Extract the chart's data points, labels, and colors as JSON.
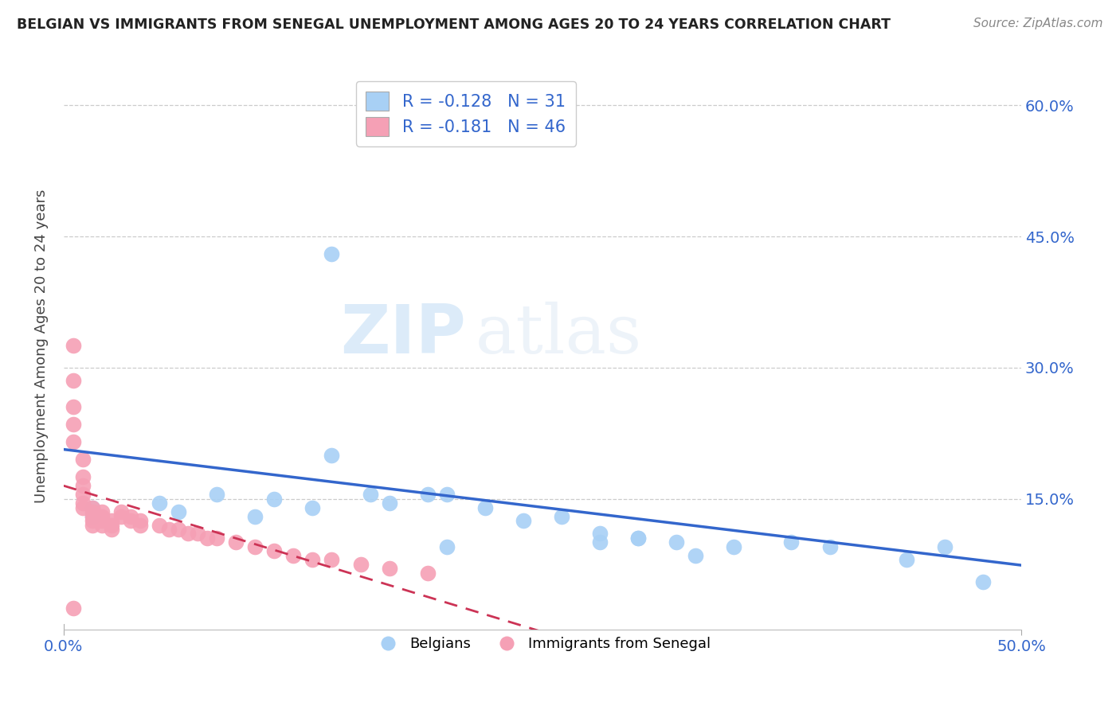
{
  "title": "BELGIAN VS IMMIGRANTS FROM SENEGAL UNEMPLOYMENT AMONG AGES 20 TO 24 YEARS CORRELATION CHART",
  "source": "Source: ZipAtlas.com",
  "ylabel": "Unemployment Among Ages 20 to 24 years",
  "xlim": [
    0.0,
    0.5
  ],
  "ylim": [
    0.0,
    0.65
  ],
  "yticks": [
    0.15,
    0.3,
    0.45,
    0.6
  ],
  "ytick_labels": [
    "15.0%",
    "30.0%",
    "45.0%",
    "60.0%"
  ],
  "xtick_labels": [
    "0.0%",
    "50.0%"
  ],
  "legend_labels": [
    "Belgians",
    "Immigrants from Senegal"
  ],
  "legend_R": [
    -0.128,
    -0.181
  ],
  "legend_N": [
    31,
    46
  ],
  "blue_color": "#a8d0f5",
  "pink_color": "#f5a0b5",
  "blue_line_color": "#3366cc",
  "pink_line_color": "#cc3355",
  "watermark_zip": "ZIP",
  "watermark_atlas": "atlas",
  "belgians_x": [
    0.015,
    0.015,
    0.18,
    0.14,
    0.05,
    0.06,
    0.08,
    0.1,
    0.11,
    0.13,
    0.14,
    0.16,
    0.17,
    0.19,
    0.2,
    0.22,
    0.24,
    0.26,
    0.28,
    0.3,
    0.32,
    0.35,
    0.38,
    0.4,
    0.28,
    0.3,
    0.33,
    0.44,
    0.46,
    0.48,
    0.2
  ],
  "belgians_y": [
    0.14,
    0.13,
    0.57,
    0.43,
    0.145,
    0.135,
    0.155,
    0.13,
    0.15,
    0.14,
    0.2,
    0.155,
    0.145,
    0.155,
    0.155,
    0.14,
    0.125,
    0.13,
    0.11,
    0.105,
    0.1,
    0.095,
    0.1,
    0.095,
    0.1,
    0.105,
    0.085,
    0.08,
    0.095,
    0.055,
    0.095
  ],
  "senegal_x": [
    0.005,
    0.005,
    0.005,
    0.005,
    0.005,
    0.01,
    0.01,
    0.01,
    0.01,
    0.01,
    0.01,
    0.015,
    0.015,
    0.015,
    0.015,
    0.015,
    0.02,
    0.02,
    0.02,
    0.02,
    0.025,
    0.025,
    0.025,
    0.03,
    0.03,
    0.035,
    0.035,
    0.04,
    0.04,
    0.05,
    0.055,
    0.06,
    0.065,
    0.07,
    0.075,
    0.08,
    0.09,
    0.1,
    0.11,
    0.12,
    0.13,
    0.14,
    0.155,
    0.17,
    0.19,
    0.005
  ],
  "senegal_y": [
    0.325,
    0.285,
    0.255,
    0.235,
    0.215,
    0.195,
    0.175,
    0.165,
    0.155,
    0.145,
    0.14,
    0.14,
    0.135,
    0.13,
    0.125,
    0.12,
    0.135,
    0.13,
    0.125,
    0.12,
    0.125,
    0.12,
    0.115,
    0.135,
    0.13,
    0.13,
    0.125,
    0.125,
    0.12,
    0.12,
    0.115,
    0.115,
    0.11,
    0.11,
    0.105,
    0.105,
    0.1,
    0.095,
    0.09,
    0.085,
    0.08,
    0.08,
    0.075,
    0.07,
    0.065,
    0.025
  ]
}
